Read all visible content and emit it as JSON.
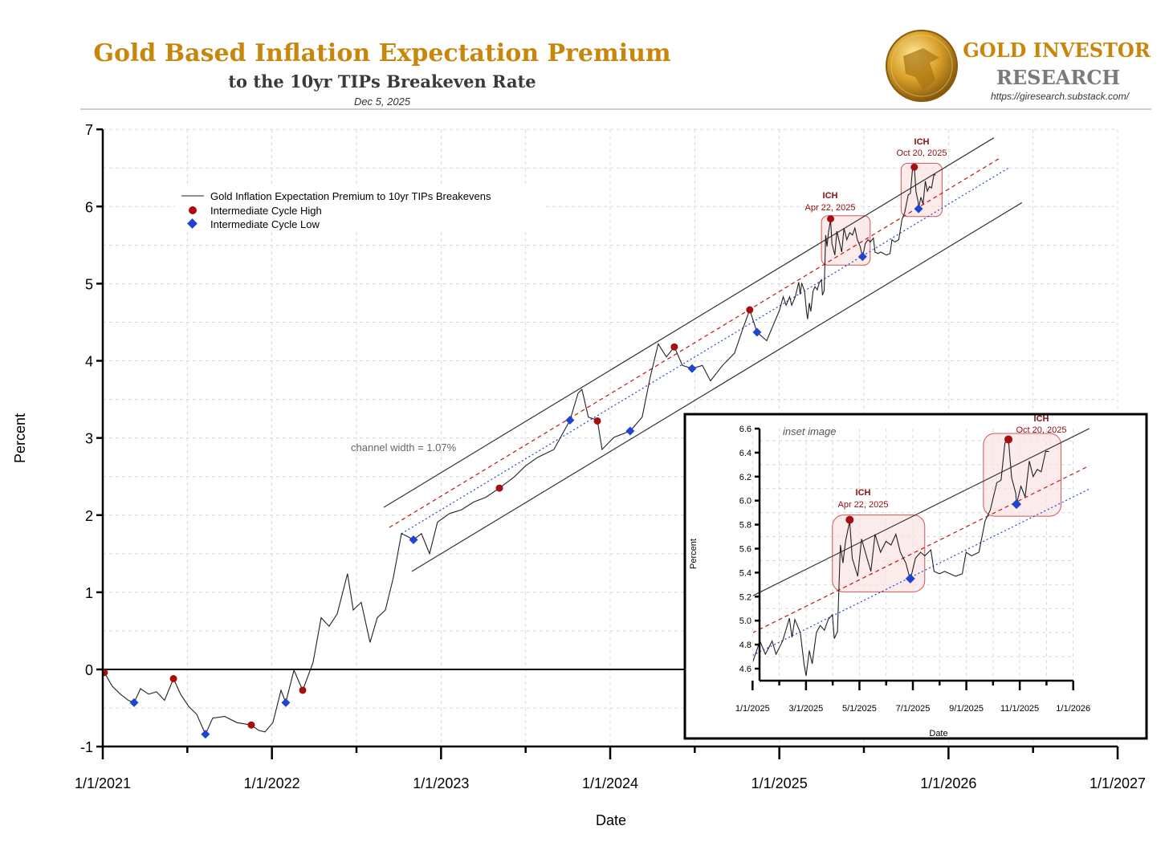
{
  "header": {
    "title": "Gold Based Inflation Expectation Premium",
    "subtitle": "to the 10yr TIPs Breakeven Rate",
    "date": "Dec 5, 2025",
    "brand_line1": "GOLD INVESTOR",
    "brand_line2": "RESEARCH",
    "brand_url": "https://giresearch.substack.com/"
  },
  "colors": {
    "title": "#c8860d",
    "subtitle": "#3a3a3a",
    "ich": "#a50f0f",
    "icl": "#1f45d0",
    "line": "#222222",
    "channel": "#333333",
    "mid_red": "#cc1111",
    "low_blue": "#1f45d0",
    "box_fill": "#f9e3e3",
    "box_stroke": "#d05555"
  },
  "chart_data": [
    {
      "type": "line",
      "name": "main",
      "xlabel": "Date",
      "ylabel": "Percent",
      "xlim": [
        2021,
        2027
      ],
      "ylim": [
        -1,
        7
      ],
      "x_ticks": [
        "1/1/2021",
        "1/1/2022",
        "1/1/2023",
        "1/1/2024",
        "1/1/2025",
        "1/1/2026",
        "1/1/2027"
      ],
      "y_ticks": [
        "-1",
        "0",
        "1",
        "2",
        "3",
        "4",
        "5",
        "6",
        "7"
      ],
      "grid": true,
      "legend_placement": "top-left",
      "legend": [
        "Gold Inflation Expectation Premium to 10yr TIPs Breakevens",
        "Intermediate Cycle High",
        "Intermediate Cycle Low"
      ],
      "annotations": {
        "channel_width": "channel width = 1.07%",
        "ich1_label": "ICH",
        "ich1_date": "Apr 22, 2025",
        "ich2_label": "ICH",
        "ich2_date": "Oct 20, 2025"
      },
      "series_x_unit": "decimal year",
      "series": [
        {
          "name": "Gold Inflation Expectation Premium to 10yr TIPs Breakevens",
          "x": [
            2021.009,
            2021.057,
            2021.104,
            2021.152,
            2021.185,
            2021.223,
            2021.271,
            2021.318,
            2021.365,
            2021.418,
            2021.46,
            2021.508,
            2021.555,
            2021.607,
            2021.65,
            2021.721,
            2021.793,
            2021.878,
            2021.921,
            2021.959,
            2022.006,
            2022.054,
            2022.082,
            2022.13,
            2022.182,
            2022.243,
            2022.291,
            2022.338,
            2022.386,
            2022.447,
            2022.481,
            2022.528,
            2022.58,
            2022.623,
            2022.671,
            2022.718,
            2022.766,
            2022.813,
            2022.837,
            2022.884,
            2022.932,
            2022.979,
            2023.05,
            2023.122,
            2023.193,
            2023.264,
            2023.345,
            2023.43,
            2023.501,
            2023.572,
            2023.667,
            2023.762,
            2023.81,
            2023.833,
            2023.871,
            2023.924,
            2023.952,
            2024.023,
            2024.118,
            2024.189,
            2024.237,
            2024.284,
            2024.332,
            2024.379,
            2024.427,
            2024.484,
            2024.545,
            2024.593,
            2024.664,
            2024.735,
            2024.783,
            2024.825,
            2024.868,
            2024.925,
            2025.0,
            2025.023,
            2025.04,
            2025.061,
            2025.073,
            2025.094,
            2025.115,
            2025.123,
            2025.132,
            2025.149,
            2025.161,
            2025.167,
            2025.177,
            2025.186,
            2025.199,
            2025.211,
            2025.224,
            2025.236,
            2025.249,
            2025.255,
            2025.265,
            2025.274,
            2025.282,
            2025.29,
            2025.303,
            2025.311,
            2025.328,
            2025.34,
            2025.357,
            2025.369,
            2025.382,
            2025.399,
            2025.416,
            2025.432,
            2025.447,
            2025.461,
            2025.478,
            2025.492,
            2025.508,
            2025.524,
            2025.537,
            2025.556,
            2025.566,
            2025.583,
            2025.599,
            2025.616,
            2025.633,
            2025.654,
            2025.666,
            2025.683,
            2025.706,
            2025.725,
            2025.741,
            2025.762,
            2025.775,
            2025.787,
            2025.798,
            2025.808,
            2025.821,
            2025.823,
            2025.837,
            2025.85,
            2025.863,
            2025.875,
            2025.888,
            2025.9,
            2025.914,
            2025.925
          ],
          "y": [
            -0.04,
            -0.22,
            -0.32,
            -0.4,
            -0.43,
            -0.25,
            -0.32,
            -0.29,
            -0.4,
            -0.12,
            -0.32,
            -0.48,
            -0.58,
            -0.84,
            -0.63,
            -0.61,
            -0.69,
            -0.72,
            -0.79,
            -0.81,
            -0.69,
            -0.27,
            -0.43,
            -0.01,
            -0.27,
            0.09,
            0.67,
            0.56,
            0.72,
            1.24,
            0.77,
            0.87,
            0.35,
            0.67,
            0.77,
            1.19,
            1.76,
            1.71,
            1.68,
            1.76,
            1.5,
            1.91,
            2.02,
            2.07,
            2.17,
            2.23,
            2.35,
            2.49,
            2.64,
            2.75,
            2.85,
            3.23,
            3.58,
            3.63,
            3.27,
            3.23,
            2.85,
            3.01,
            3.09,
            3.27,
            3.79,
            4.22,
            4.05,
            4.18,
            3.94,
            3.9,
            3.94,
            3.74,
            3.94,
            4.1,
            4.41,
            4.66,
            4.37,
            4.26,
            4.65,
            4.83,
            4.72,
            4.83,
            4.72,
            4.83,
            5.02,
            4.86,
            5.01,
            4.9,
            4.63,
            4.54,
            4.75,
            4.64,
            4.9,
            4.96,
            4.92,
            5.01,
            5.05,
            4.85,
            4.91,
            5.63,
            5.48,
            5.66,
            5.83,
            5.52,
            5.37,
            5.68,
            5.52,
            5.41,
            5.72,
            5.57,
            5.66,
            5.63,
            5.72,
            5.57,
            5.48,
            5.34,
            5.52,
            5.57,
            5.54,
            5.59,
            5.41,
            5.39,
            5.41,
            5.39,
            5.37,
            5.39,
            5.57,
            5.54,
            5.57,
            5.83,
            5.92,
            6.15,
            6.17,
            6.48,
            6.51,
            6.19,
            6.06,
            5.97,
            6.12,
            6.03,
            6.33,
            6.2,
            6.26,
            6.24,
            6.41,
            6.41
          ]
        }
      ],
      "cycle_highs": {
        "x": [
          2021.009,
          2021.418,
          2021.878,
          2022.182,
          2023.345,
          2023.924,
          2024.379,
          2024.825,
          2025.303,
          2025.798
        ],
        "y": [
          -0.04,
          -0.12,
          -0.72,
          -0.27,
          2.35,
          3.22,
          4.18,
          4.66,
          5.84,
          6.51
        ]
      },
      "cycle_lows": {
        "x": [
          2021.185,
          2021.607,
          2022.082,
          2022.837,
          2023.762,
          2024.118,
          2024.484,
          2024.868,
          2025.492,
          2025.823
        ],
        "y": [
          -0.43,
          -0.84,
          -0.43,
          1.68,
          3.23,
          3.09,
          3.9,
          4.37,
          5.35,
          5.97
        ]
      },
      "channel": {
        "upper": {
          "x": [
            2022.661,
            2026.268
          ],
          "y": [
            2.1,
            6.89
          ]
        },
        "lower": {
          "x": [
            2022.827,
            2026.434
          ],
          "y": [
            1.27,
            6.05
          ]
        },
        "mid_red_dashed": {
          "x": [
            2022.694,
            2026.306
          ],
          "y": [
            1.84,
            6.63
          ]
        },
        "low_blue_dotted": {
          "x": [
            2022.766,
            2026.363
          ],
          "y": [
            1.76,
            6.51
          ]
        }
      },
      "highlight_boxes": [
        {
          "x": [
            2025.249,
            2025.537
          ],
          "y": [
            5.24,
            5.88
          ]
        },
        {
          "x": [
            2025.72,
            2025.962
          ],
          "y": [
            5.87,
            6.56
          ]
        }
      ]
    },
    {
      "type": "line",
      "name": "inset",
      "title": "inset image",
      "xlabel": "Date",
      "ylabel": "Percent",
      "xlim": [
        2025,
        2026
      ],
      "ylim": [
        4.5,
        6.6
      ],
      "x_ticks": [
        "1/1/2025",
        "3/1/2025",
        "5/1/2025",
        "7/1/2025",
        "9/1/2025",
        "11/1/2025",
        "1/1/2026"
      ],
      "y_ticks": [
        "4.6",
        "4.8",
        "5.0",
        "5.2",
        "5.4",
        "5.6",
        "5.8",
        "6.0",
        "6.2",
        "6.4",
        "6.6"
      ],
      "annotations": {
        "ich1_label": "ICH",
        "ich1_date": "Apr 22, 2025",
        "ich2_label": "ICH",
        "ich2_date": "Oct 20, 2025"
      }
    }
  ]
}
